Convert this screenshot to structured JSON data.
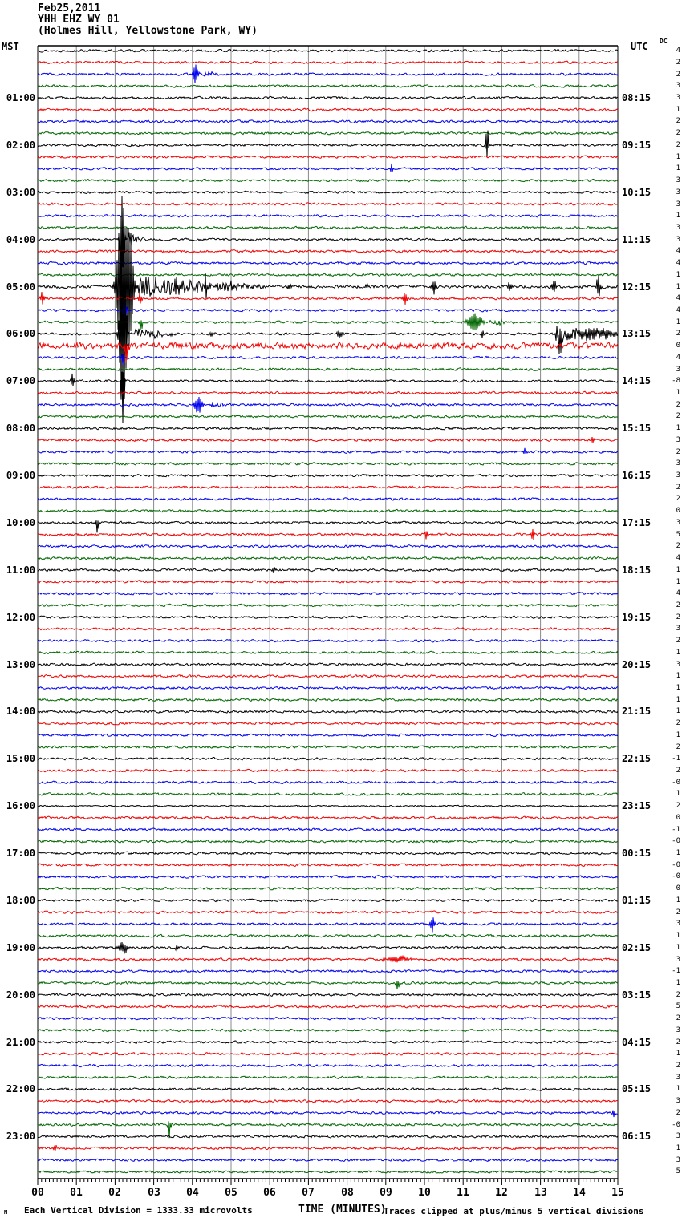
{
  "header": {
    "date": "Feb25,2011",
    "station": "YHH EHZ WY 01",
    "location": "(Holmes Hill, Yellowstone Park, WY)"
  },
  "axes": {
    "left_label": "MST",
    "right_label": "UTC",
    "dc_label": "DC",
    "x_label": "TIME (MINUTES)",
    "x_ticks": [
      "00",
      "01",
      "02",
      "03",
      "04",
      "05",
      "06",
      "07",
      "08",
      "09",
      "10",
      "11",
      "12",
      "13",
      "14",
      "15"
    ],
    "mst_hours": [
      "01:00",
      "02:00",
      "03:00",
      "04:00",
      "05:00",
      "06:00",
      "07:00",
      "08:00",
      "09:00",
      "10:00",
      "11:00",
      "12:00",
      "13:00",
      "14:00",
      "15:00",
      "16:00",
      "17:00",
      "18:00",
      "19:00",
      "20:00",
      "21:00",
      "22:00",
      "23:00"
    ],
    "utc_hours": [
      "08:15",
      "09:15",
      "10:15",
      "11:15",
      "12:15",
      "13:15",
      "14:15",
      "15:15",
      "16:15",
      "17:15",
      "18:15",
      "19:15",
      "20:15",
      "21:15",
      "22:15",
      "23:15",
      "00:15",
      "01:15",
      "02:15",
      "03:15",
      "04:15",
      "05:15",
      "06:15"
    ]
  },
  "footer": {
    "tiny_mark": "M",
    "division_note": "Each Vertical Division = 1333.33 microvolts",
    "x_label": "TIME (MINUTES)",
    "clip_note": "Traces clipped at plus/minus 5 vertical divisions"
  },
  "colors": {
    "black": "#000000",
    "red": "#ee0000",
    "blue": "#0000ee",
    "green": "#006600",
    "grid": "#888888"
  },
  "chart_data": {
    "type": "line",
    "title": "YHH EHZ WY 01 helicorder, Feb25,2011",
    "trace_count": 96,
    "minutes_per_trace": 15,
    "x_range": [
      0,
      15
    ],
    "trace_cycle_colors": [
      "black",
      "red",
      "blue",
      "green"
    ],
    "clip_divisions": 5,
    "microvolts_per_division": "1333.33",
    "dc_values": [
      "4",
      "2",
      "2",
      "3",
      "3",
      "1",
      "2",
      "2",
      "2",
      "1",
      "1",
      "3",
      "3",
      "3",
      "1",
      "3",
      "3",
      "4",
      "4",
      "1",
      "1",
      "4",
      "4",
      "1",
      "2",
      "0",
      "4",
      "3",
      "-8",
      "1",
      "2",
      "2",
      "1",
      "3",
      "2",
      "3",
      "3",
      "2",
      "2",
      "0",
      "3",
      "5",
      "2",
      "4",
      "1",
      "1",
      "4",
      "2",
      "2",
      "3",
      "2",
      "1",
      "3",
      "1",
      "1",
      "1",
      "1",
      "2",
      "1",
      "2",
      "-1",
      "2",
      "-0",
      "1",
      "2",
      "0",
      "-1",
      "-0",
      "1",
      "-0",
      "-0",
      "0",
      "1",
      "2",
      "3",
      "1",
      "1",
      "3",
      "-1",
      "1",
      "2",
      "5",
      "2",
      "3",
      "2",
      "1",
      "2",
      "3",
      "1",
      "3",
      "2",
      "-0",
      "3",
      "1",
      "3",
      "5"
    ],
    "noise_overrides": {
      "20": 1.3,
      "25": 2.6,
      "64": 0.6
    },
    "events": [
      {
        "trace": 2,
        "t": 4.08,
        "amp": 14,
        "w": 0.12,
        "kind": "burst"
      },
      {
        "trace": 2,
        "t": 4.3,
        "amp": 4,
        "w": 0.5,
        "kind": "coda"
      },
      {
        "trace": 8,
        "t": 11.62,
        "amp": 24,
        "w": 0.07,
        "kind": "spike"
      },
      {
        "trace": 10,
        "t": 9.15,
        "amp": 6,
        "w": 0.08,
        "kind": "spike"
      },
      {
        "trace": 16,
        "t": 2.18,
        "amp": 80,
        "w": 0.1,
        "kind": "spike"
      },
      {
        "trace": 16,
        "t": 2.35,
        "amp": 10,
        "w": 0.5,
        "kind": "coda"
      },
      {
        "trace": 20,
        "t": 2.25,
        "amp": 220,
        "w": 0.3,
        "kind": "burst"
      },
      {
        "trace": 20,
        "t": 2.6,
        "amp": 14,
        "w": 3.5,
        "kind": "coda"
      },
      {
        "trace": 20,
        "t": 3.6,
        "amp": 8,
        "w": 0.1,
        "kind": "spike"
      },
      {
        "trace": 20,
        "t": 4.35,
        "amp": 12,
        "w": 0.1,
        "kind": "spike"
      },
      {
        "trace": 20,
        "t": 5.0,
        "amp": 6,
        "w": 0.1,
        "kind": "spike"
      },
      {
        "trace": 20,
        "t": 6.5,
        "amp": 5,
        "w": 0.1,
        "kind": "spike"
      },
      {
        "trace": 20,
        "t": 8.5,
        "amp": 4,
        "w": 0.1,
        "kind": "spike"
      },
      {
        "trace": 20,
        "t": 10.25,
        "amp": 11,
        "w": 0.1,
        "kind": "spike"
      },
      {
        "trace": 20,
        "t": 12.2,
        "amp": 8,
        "w": 0.08,
        "kind": "spike"
      },
      {
        "trace": 20,
        "t": 13.35,
        "amp": 10,
        "w": 0.12,
        "kind": "spike"
      },
      {
        "trace": 20,
        "t": 14.5,
        "amp": 16,
        "w": 0.1,
        "kind": "spike"
      },
      {
        "trace": 21,
        "t": 0.12,
        "amp": 12,
        "w": 0.08,
        "kind": "spike"
      },
      {
        "trace": 21,
        "t": 2.65,
        "amp": 9,
        "w": 0.08,
        "kind": "spike"
      },
      {
        "trace": 21,
        "t": 9.5,
        "amp": 11,
        "w": 0.08,
        "kind": "spike"
      },
      {
        "trace": 22,
        "t": 2.25,
        "amp": 16,
        "w": 0.1,
        "kind": "spike"
      },
      {
        "trace": 23,
        "t": 2.67,
        "amp": 11,
        "w": 0.08,
        "kind": "spike",
        "dir": -1
      },
      {
        "trace": 23,
        "t": 11.3,
        "amp": 13,
        "w": 0.35,
        "kind": "burst"
      },
      {
        "trace": 23,
        "t": 11.7,
        "amp": 4,
        "w": 0.8,
        "kind": "coda"
      },
      {
        "trace": 24,
        "t": 2.2,
        "amp": 180,
        "w": 0.15,
        "kind": "burst"
      },
      {
        "trace": 24,
        "t": 2.5,
        "amp": 8,
        "w": 1.2,
        "kind": "coda"
      },
      {
        "trace": 24,
        "t": 4.5,
        "amp": 5,
        "w": 0.1,
        "kind": "spike"
      },
      {
        "trace": 24,
        "t": 7.8,
        "amp": 5,
        "w": 0.15,
        "kind": "burst"
      },
      {
        "trace": 24,
        "t": 11.5,
        "amp": 6,
        "w": 0.08,
        "kind": "spike"
      },
      {
        "trace": 24,
        "t": 13.5,
        "amp": 20,
        "w": 0.1,
        "kind": "spike",
        "dir": -1
      },
      {
        "trace": 24,
        "t": 13.4,
        "amp": 9,
        "w": 1.6,
        "kind": "coda"
      },
      {
        "trace": 24,
        "t": 14.3,
        "amp": 8,
        "w": 1.2,
        "kind": "burst"
      },
      {
        "trace": 25,
        "t": 2.3,
        "amp": 20,
        "w": 0.1,
        "kind": "spike",
        "dir": -1
      },
      {
        "trace": 26,
        "t": 2.2,
        "amp": 9,
        "w": 0.08,
        "kind": "spike"
      },
      {
        "trace": 28,
        "t": 0.9,
        "amp": 10,
        "w": 0.08,
        "kind": "spike"
      },
      {
        "trace": 28,
        "t": 2.2,
        "amp": 45,
        "w": 0.08,
        "kind": "spike",
        "dir": -1
      },
      {
        "trace": 30,
        "t": 4.15,
        "amp": 12,
        "w": 0.2,
        "kind": "burst"
      },
      {
        "trace": 30,
        "t": 4.5,
        "amp": 4,
        "w": 0.6,
        "kind": "coda"
      },
      {
        "trace": 33,
        "t": 14.35,
        "amp": 7,
        "w": 0.07,
        "kind": "spike"
      },
      {
        "trace": 34,
        "t": 12.6,
        "amp": 4,
        "w": 0.07,
        "kind": "spike"
      },
      {
        "trace": 40,
        "t": 1.55,
        "amp": 14,
        "w": 0.08,
        "kind": "spike",
        "dir": -1
      },
      {
        "trace": 41,
        "t": 10.05,
        "amp": 6,
        "w": 0.06,
        "kind": "spike"
      },
      {
        "trace": 41,
        "t": 12.8,
        "amp": 10,
        "w": 0.07,
        "kind": "spike"
      },
      {
        "trace": 44,
        "t": 6.1,
        "amp": 5,
        "w": 0.06,
        "kind": "spike"
      },
      {
        "trace": 74,
        "t": 10.2,
        "amp": 12,
        "w": 0.1,
        "kind": "spike"
      },
      {
        "trace": 76,
        "t": 2.2,
        "amp": 8,
        "w": 0.25,
        "kind": "burst"
      },
      {
        "trace": 76,
        "t": 3.6,
        "amp": 4,
        "w": 0.08,
        "kind": "spike"
      },
      {
        "trace": 77,
        "t": 9.3,
        "amp": 4,
        "w": 0.6,
        "kind": "burst"
      },
      {
        "trace": 79,
        "t": 9.3,
        "amp": 10,
        "w": 0.08,
        "kind": "spike",
        "dir": -1
      },
      {
        "trace": 90,
        "t": 14.9,
        "amp": 6,
        "w": 0.07,
        "kind": "spike"
      },
      {
        "trace": 91,
        "t": 3.4,
        "amp": 10,
        "w": 0.08,
        "kind": "spike",
        "dir": -1
      },
      {
        "trace": 93,
        "t": 0.45,
        "amp": 7,
        "w": 0.07,
        "kind": "spike"
      }
    ]
  }
}
